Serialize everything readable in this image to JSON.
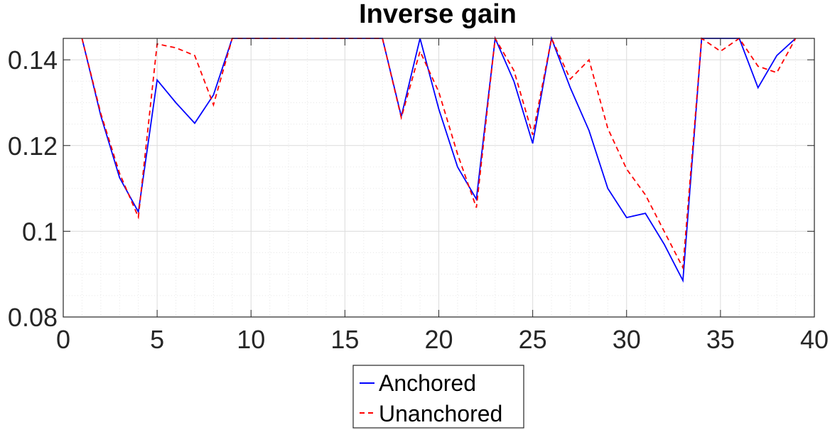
{
  "chart_data": {
    "type": "line",
    "title": "Inverse gain",
    "xlabel": "",
    "ylabel": "",
    "xlim": [
      0,
      40
    ],
    "ylim": [
      0.08,
      0.145
    ],
    "xticks": [
      0,
      5,
      10,
      15,
      20,
      25,
      30,
      35,
      40
    ],
    "xtick_labels": [
      "0",
      "5",
      "10",
      "15",
      "20",
      "25",
      "30",
      "35",
      "40"
    ],
    "yticks": [
      0.08,
      0.1,
      0.12,
      0.14
    ],
    "ytick_labels": [
      "0.08",
      "0.1",
      "0.12",
      "0.14"
    ],
    "grid": true,
    "minor_grid": true,
    "legend_position": "bottom-center",
    "x": [
      1,
      2,
      3,
      4,
      5,
      6,
      7,
      8,
      9,
      10,
      11,
      12,
      13,
      14,
      15,
      16,
      17,
      18,
      19,
      20,
      21,
      22,
      23,
      24,
      25,
      26,
      27,
      28,
      29,
      30,
      31,
      32,
      33,
      34,
      35,
      36,
      37,
      38,
      39
    ],
    "series": [
      {
        "name": "Anchored",
        "color": "#0000ff",
        "style": "solid",
        "values": [
          0.145,
          0.127,
          0.1125,
          0.1045,
          0.1353,
          0.13,
          0.1252,
          0.1318,
          0.145,
          0.145,
          0.145,
          0.145,
          0.145,
          0.145,
          0.145,
          0.145,
          0.145,
          0.1268,
          0.145,
          0.1285,
          0.115,
          0.1075,
          0.145,
          0.135,
          0.1205,
          0.145,
          0.1335,
          0.1235,
          0.11,
          0.1032,
          0.1042,
          0.097,
          0.0885,
          0.145,
          0.145,
          0.145,
          0.1335,
          0.141,
          0.145
        ]
      },
      {
        "name": "Unanchored",
        "color": "#ff0000",
        "style": "dashed",
        "values": [
          0.145,
          0.1275,
          0.1135,
          0.1033,
          0.1437,
          0.1428,
          0.141,
          0.1295,
          0.145,
          0.145,
          0.145,
          0.145,
          0.145,
          0.145,
          0.145,
          0.145,
          0.145,
          0.1265,
          0.142,
          0.1325,
          0.118,
          0.1055,
          0.145,
          0.1375,
          0.1225,
          0.145,
          0.1355,
          0.14,
          0.124,
          0.1145,
          0.1085,
          0.1,
          0.0915,
          0.145,
          0.142,
          0.145,
          0.1385,
          0.137,
          0.145
        ]
      }
    ]
  }
}
